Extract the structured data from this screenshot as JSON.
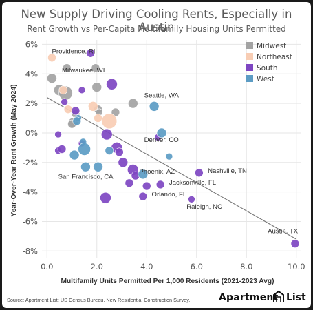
{
  "chart_data": {
    "type": "scatter",
    "title": "New Supply Driving Cooling Rents, Especially in Austin",
    "subtitle": "Rent Growth vs Per-Capita Multifamily Housing Units Permitted",
    "xlabel": "Multifamily Units Permitted Per 1,000 Residents (2021-2023 Avg)",
    "ylabel": "Year-Over-Year Rent Growth (May 2024)",
    "xlim": [
      -0.2,
      10.2
    ],
    "ylim": [
      -8.5,
      6.3
    ],
    "xticks": [
      "0.0",
      "2.0",
      "4.0",
      "6.0",
      "8.0",
      "10.0"
    ],
    "yticks": [
      "-8%",
      "-6%",
      "-4%",
      "-2%",
      "0%",
      "2%",
      "4%",
      "6%"
    ],
    "grid": true,
    "legend_position": "top-right",
    "colors": {
      "Midwest": "#a3a3a3",
      "Northeast": "#f8cdb4",
      "South": "#7e46c2",
      "West": "#5c9cc4"
    },
    "series": [
      {
        "name": "Midwest",
        "points": [
          {
            "x": 0.2,
            "y": 3.7,
            "s": 7
          },
          {
            "x": 0.8,
            "y": 4.4,
            "s": 6
          },
          {
            "x": 0.5,
            "y": 2.9,
            "s": 8
          },
          {
            "x": 0.75,
            "y": 2.7,
            "s": 10
          },
          {
            "x": 1.15,
            "y": 1.3,
            "s": 6
          },
          {
            "x": 1.05,
            "y": 0.7,
            "s": 7
          },
          {
            "x": 1.0,
            "y": 0.6,
            "s": 6
          },
          {
            "x": 1.95,
            "y": 4.4,
            "s": 6
          },
          {
            "x": 2.0,
            "y": 3.1,
            "s": 7
          },
          {
            "x": 2.05,
            "y": 1.6,
            "s": 6
          },
          {
            "x": 2.1,
            "y": 1.4,
            "s": 5
          },
          {
            "x": 2.75,
            "y": 1.4,
            "s": 6
          },
          {
            "x": 3.45,
            "y": 2.0,
            "s": 7
          }
        ]
      },
      {
        "name": "Northeast",
        "points": [
          {
            "x": 0.2,
            "y": 5.1,
            "s": 6
          },
          {
            "x": 0.65,
            "y": 2.9,
            "s": 6
          },
          {
            "x": 0.85,
            "y": 1.6,
            "s": 6
          },
          {
            "x": 1.85,
            "y": 1.8,
            "s": 7
          },
          {
            "x": 2.05,
            "y": 1.0,
            "s": 6
          },
          {
            "x": 2.5,
            "y": 0.8,
            "s": 11
          }
        ]
      },
      {
        "name": "South",
        "points": [
          {
            "x": 1.75,
            "y": 5.4,
            "s": 6
          },
          {
            "x": 0.7,
            "y": 2.1,
            "s": 5
          },
          {
            "x": 1.4,
            "y": 2.9,
            "s": 5
          },
          {
            "x": 1.15,
            "y": 1.5,
            "s": 6
          },
          {
            "x": 2.6,
            "y": 3.3,
            "s": 8
          },
          {
            "x": 0.45,
            "y": -0.1,
            "s": 5
          },
          {
            "x": 0.45,
            "y": -1.2,
            "s": 5
          },
          {
            "x": 0.6,
            "y": -1.1,
            "s": 6
          },
          {
            "x": 1.4,
            "y": -0.7,
            "s": 5
          },
          {
            "x": 2.4,
            "y": -0.1,
            "s": 8
          },
          {
            "x": 2.8,
            "y": -1.0,
            "s": 8
          },
          {
            "x": 2.9,
            "y": -1.3,
            "s": 6
          },
          {
            "x": 3.05,
            "y": -2.0,
            "s": 7
          },
          {
            "x": 3.45,
            "y": -2.5,
            "s": 8
          },
          {
            "x": 3.3,
            "y": -3.4,
            "s": 6
          },
          {
            "x": 3.55,
            "y": -2.9,
            "s": 6
          },
          {
            "x": 2.35,
            "y": -4.4,
            "s": 8
          },
          {
            "x": 4.0,
            "y": -3.6,
            "s": 6
          },
          {
            "x": 4.45,
            "y": -0.3,
            "s": 5
          },
          {
            "x": 4.55,
            "y": -3.5,
            "s": 6
          },
          {
            "x": 3.85,
            "y": -4.3,
            "s": 6
          },
          {
            "x": 5.8,
            "y": -4.5,
            "s": 5
          },
          {
            "x": 6.1,
            "y": -2.7,
            "s": 6
          },
          {
            "x": 9.95,
            "y": -7.5,
            "s": 6
          }
        ]
      },
      {
        "name": "West",
        "points": [
          {
            "x": 1.25,
            "y": 1.0,
            "s": 5
          },
          {
            "x": 1.2,
            "y": 0.8,
            "s": 6
          },
          {
            "x": 1.45,
            "y": -0.6,
            "s": 5
          },
          {
            "x": 1.1,
            "y": -1.5,
            "s": 7
          },
          {
            "x": 1.5,
            "y": -1.1,
            "s": 9
          },
          {
            "x": 1.55,
            "y": -2.3,
            "s": 7
          },
          {
            "x": 2.05,
            "y": -2.3,
            "s": 7
          },
          {
            "x": 2.5,
            "y": -1.2,
            "s": 6
          },
          {
            "x": 3.85,
            "y": -2.8,
            "s": 7
          },
          {
            "x": 4.3,
            "y": 1.8,
            "s": 7
          },
          {
            "x": 4.6,
            "y": 0.0,
            "s": 7
          },
          {
            "x": 4.9,
            "y": -1.6,
            "s": 5
          }
        ]
      }
    ],
    "trendline": {
      "x": [
        0.0,
        10.0
      ],
      "y": [
        2.4,
        -7.2
      ]
    },
    "annotations": [
      {
        "text": "Providence, RI",
        "x": 0.2,
        "y": 5.4
      },
      {
        "text": "Milwaukee, WI",
        "x": 0.6,
        "y": 4.1
      },
      {
        "text": "Seattle, WA",
        "x": 3.9,
        "y": 2.4
      },
      {
        "text": "Denver, CO",
        "x": 3.9,
        "y": -0.6
      },
      {
        "text": "San Francisco, CA",
        "x": 0.45,
        "y": -3.1
      },
      {
        "text": "Phoenix, AZ",
        "x": 3.7,
        "y": -2.75
      },
      {
        "text": "Nashville, TN",
        "x": 6.45,
        "y": -2.7
      },
      {
        "text": "Jacksonville, FL",
        "x": 4.9,
        "y": -3.5
      },
      {
        "text": "Orlando, FL",
        "x": 4.2,
        "y": -4.3
      },
      {
        "text": "Raleigh, NC",
        "x": 5.6,
        "y": -5.15
      },
      {
        "text": "Austin, TX",
        "x": 8.85,
        "y": -6.8
      }
    ]
  },
  "footer": {
    "source": "Source: Apartment List; US Census Bureau, New Residential Construction Survey.",
    "brand_left": "Apartment",
    "brand_right": "List"
  }
}
